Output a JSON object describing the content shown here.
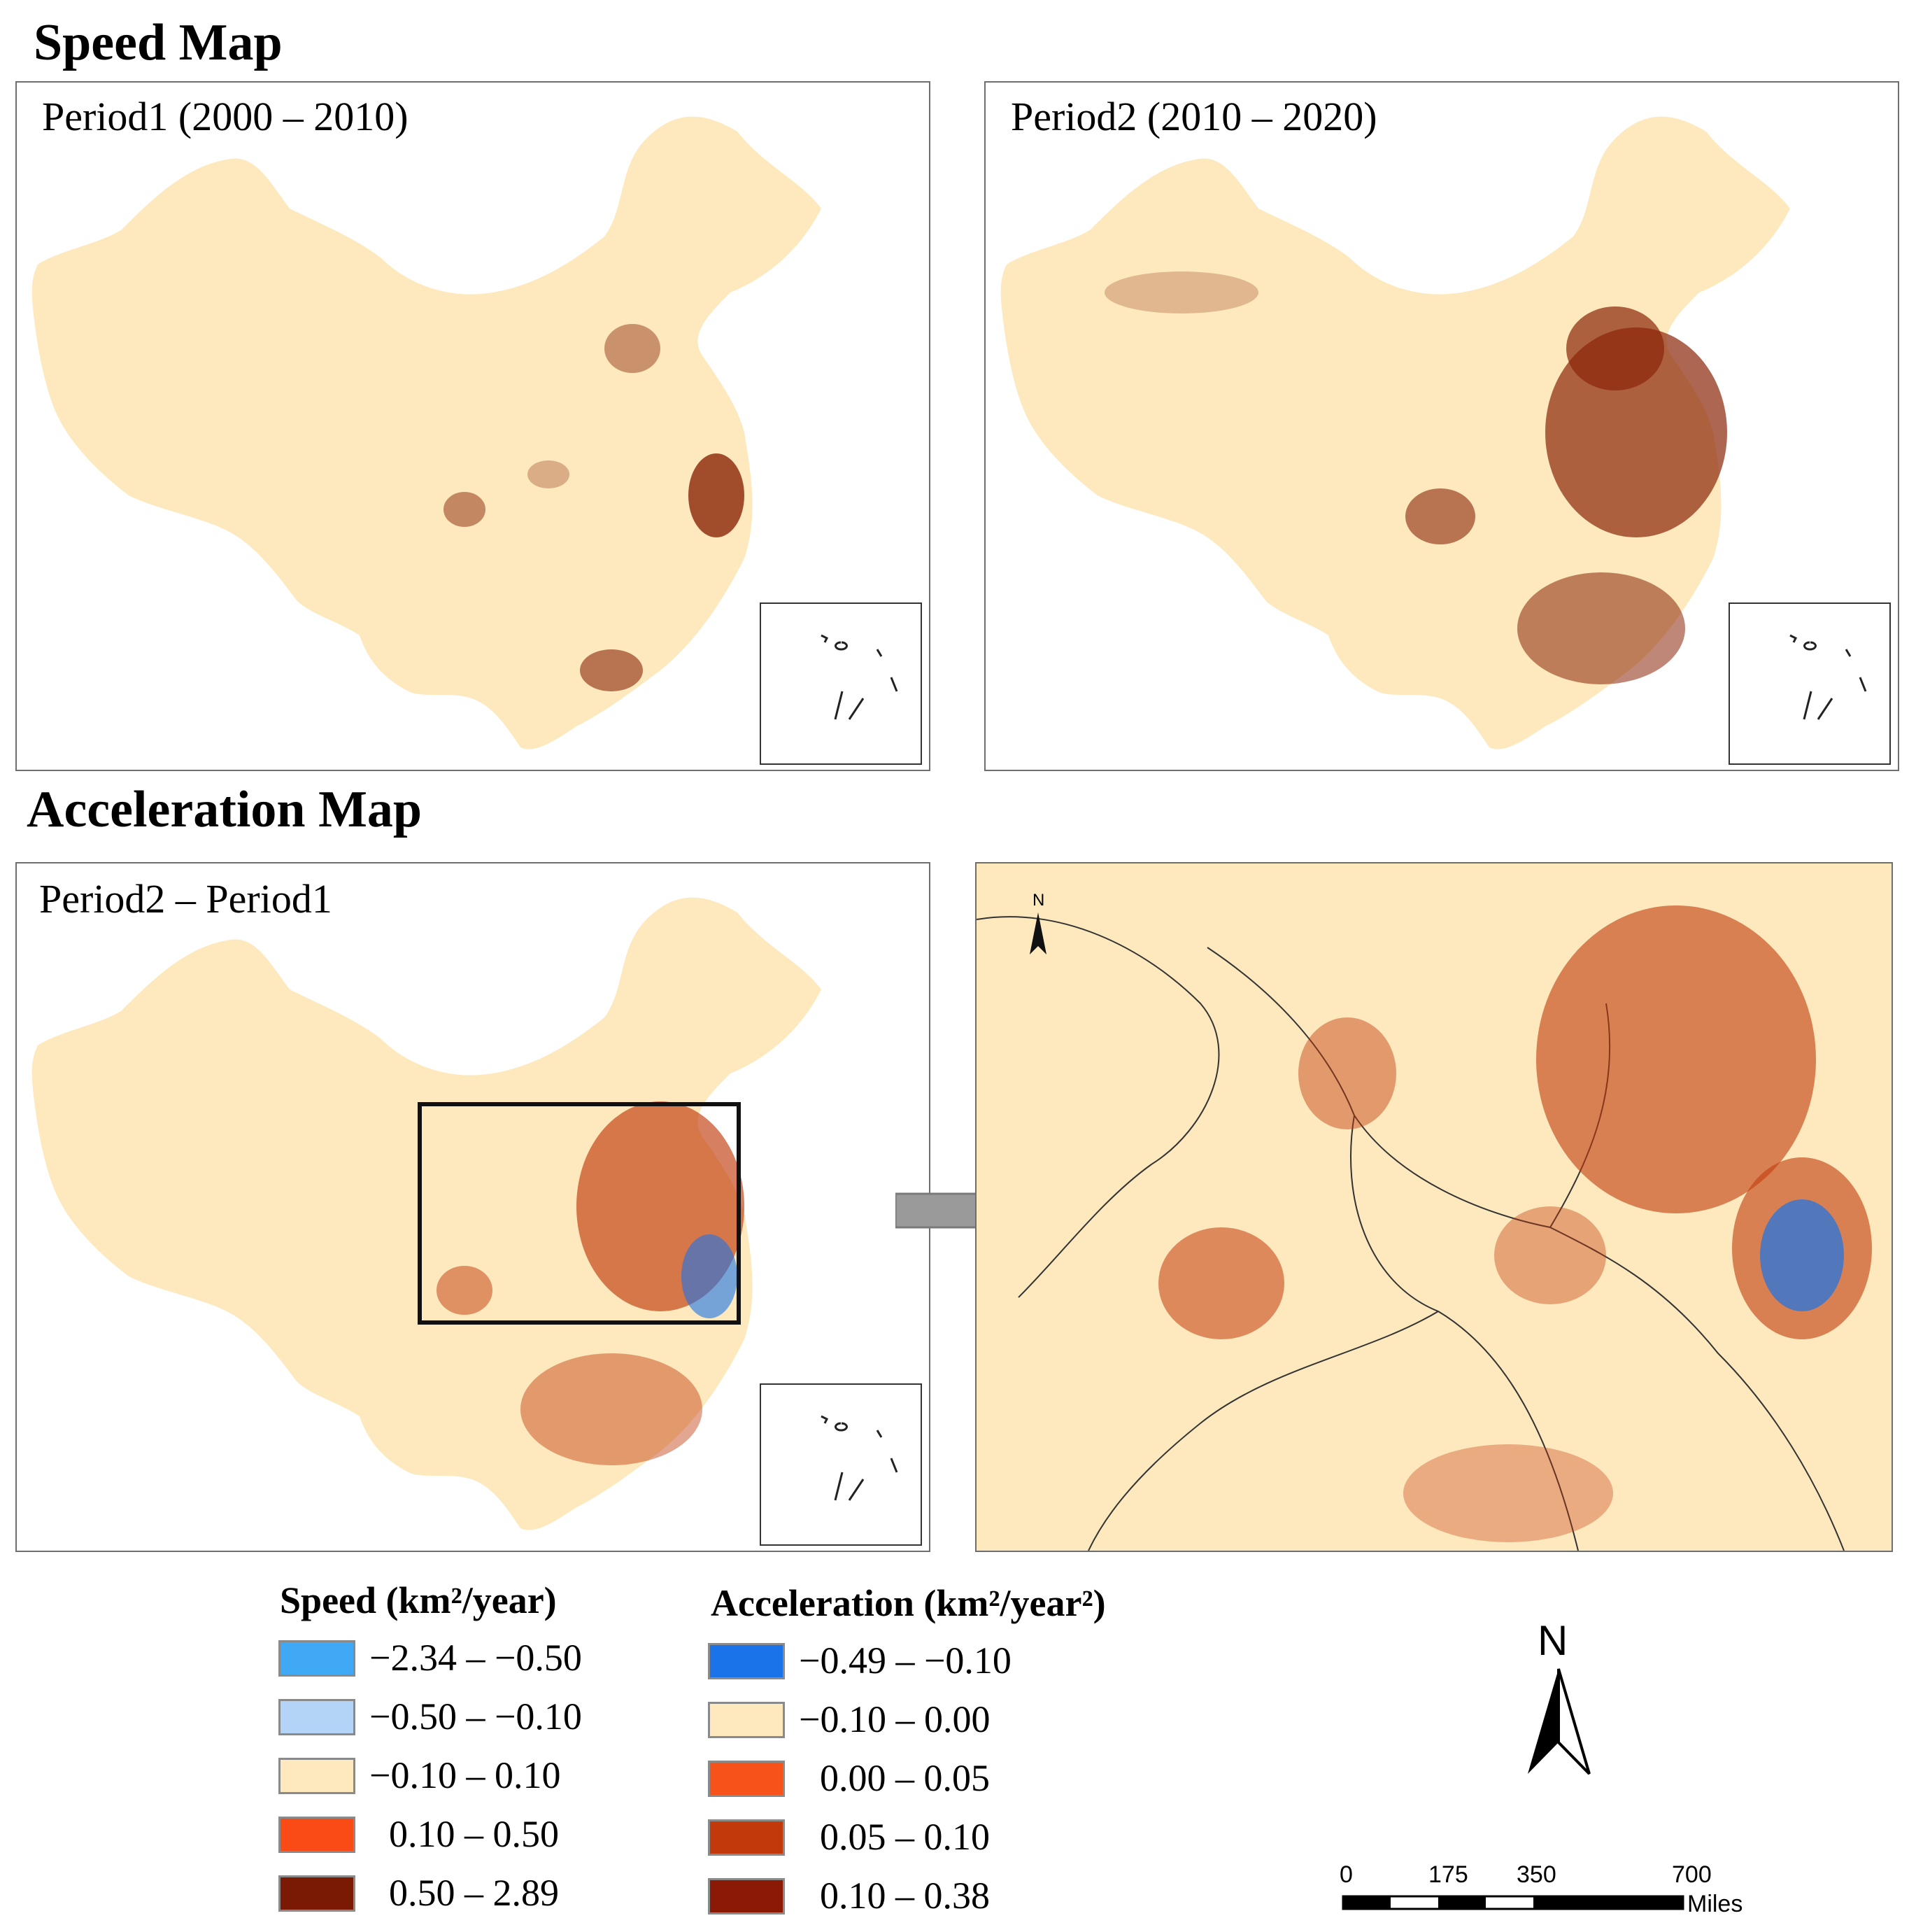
{
  "speed_map": {
    "title": "Speed Map",
    "period1": {
      "label": "Period1 (2000 – 2010)"
    },
    "period2": {
      "label": "Period2 (2010 – 2020)"
    }
  },
  "acceleration_map": {
    "title": "Acceleration Map",
    "diff": {
      "label": "Period2 – Period1"
    }
  },
  "legend": {
    "speed": {
      "title": "Speed (km²/year)",
      "classes": [
        {
          "range": "−2.34 – −0.50",
          "color": "#3fa9f5"
        },
        {
          "range": "−0.50 – −0.10",
          "color": "#b3d3f7"
        },
        {
          "range": "−0.10 –   0.10",
          "color": "#fde9bd"
        },
        {
          "range": "0.10 –   0.50",
          "color": "#fa4b16"
        },
        {
          "range": "0.50 –   2.89",
          "color": "#7a1a05"
        }
      ]
    },
    "acceleration": {
      "title": "Acceleration (km²/year²)",
      "classes": [
        {
          "range": "−0.49 – −0.10",
          "color": "#1a73e8"
        },
        {
          "range": "−0.10 –   0.00",
          "color": "#fde9bd"
        },
        {
          "range": "0.00 –   0.05",
          "color": "#f7521a"
        },
        {
          "range": "0.05 –   0.10",
          "color": "#c23a0c"
        },
        {
          "range": "0.10 –   0.38",
          "color": "#8a1a05"
        }
      ]
    }
  },
  "north_arrow": {
    "label": "N"
  },
  "scale_bar": {
    "ticks": [
      "0",
      "175",
      "350",
      "700"
    ],
    "unit": "Miles"
  },
  "colors": {
    "land_base": "#fde9bd",
    "urban_light": "#d2581c",
    "urban_dark": "#8a2508",
    "decline_blue": "#3a86e8",
    "inset_frame": "#333333",
    "arrow_gray": "#9a9a9a"
  }
}
